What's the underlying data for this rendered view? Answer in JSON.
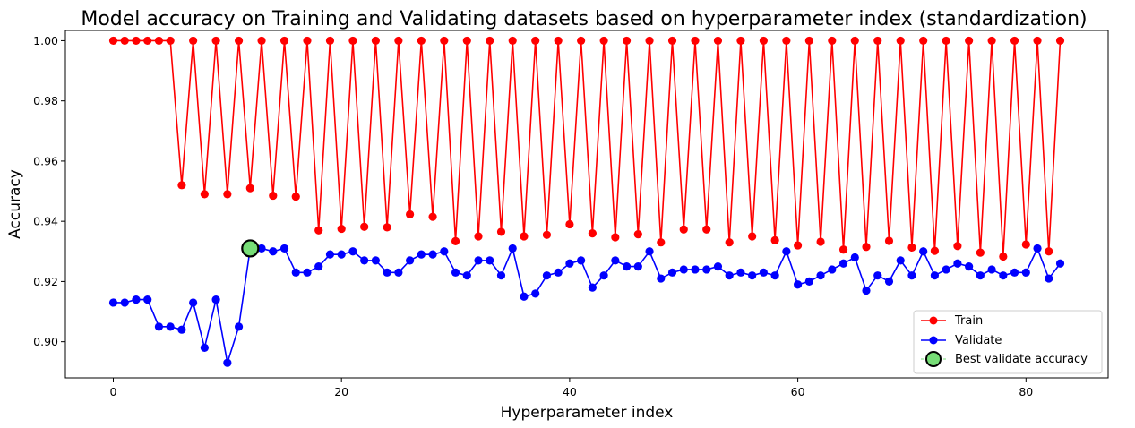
{
  "chart_data": {
    "type": "line",
    "title": "Model accuracy on Training and Validating datasets based on hyperparameter index (standardization)",
    "xlabel": "Hyperparameter index",
    "ylabel": "Accuracy",
    "xlim": [
      -4.2,
      87.2
    ],
    "ylim": [
      0.888,
      1.0034
    ],
    "xticks": [
      0,
      20,
      40,
      60,
      80
    ],
    "xtick_labels": [
      "0",
      "20",
      "40",
      "60",
      "80"
    ],
    "yticks": [
      0.9,
      0.92,
      0.94,
      0.96,
      0.98,
      1.0
    ],
    "ytick_labels": [
      "0.90",
      "0.92",
      "0.94",
      "0.96",
      "0.98",
      "1.00"
    ],
    "grid": false,
    "legend_position": "lower-right",
    "series": [
      {
        "name": "Train",
        "color": "#ff0000",
        "marker": "circle",
        "x": [
          0,
          1,
          2,
          3,
          4,
          5,
          6,
          7,
          8,
          9,
          10,
          11,
          12,
          13,
          14,
          15,
          16,
          17,
          18,
          19,
          20,
          21,
          22,
          23,
          24,
          25,
          26,
          27,
          28,
          29,
          30,
          31,
          32,
          33,
          34,
          35,
          36,
          37,
          38,
          39,
          40,
          41,
          42,
          43,
          44,
          45,
          46,
          47,
          48,
          49,
          50,
          51,
          52,
          53,
          54,
          55,
          56,
          57,
          58,
          59,
          60,
          61,
          62,
          63,
          64,
          65,
          66,
          67,
          68,
          69,
          70,
          71,
          72,
          73,
          74,
          75,
          76,
          77,
          78,
          79,
          80,
          81,
          82,
          83
        ],
        "values": [
          1.0,
          1.0,
          1.0,
          1.0,
          1.0,
          1.0,
          0.952,
          1.0,
          0.949,
          1.0,
          0.949,
          1.0,
          0.951,
          1.0,
          0.9485,
          1.0,
          0.9482,
          1.0,
          0.937,
          1.0,
          0.9375,
          1.0,
          0.9382,
          1.0,
          0.938,
          1.0,
          0.9423,
          1.0,
          0.9415,
          1.0,
          0.9334,
          1.0,
          0.935,
          1.0,
          0.9365,
          1.0,
          0.935,
          1.0,
          0.9355,
          1.0,
          0.939,
          1.0,
          0.936,
          1.0,
          0.9347,
          1.0,
          0.9357,
          1.0,
          0.933,
          1.0,
          0.9373,
          1.0,
          0.9373,
          1.0,
          0.933,
          1.0,
          0.935,
          1.0,
          0.9337,
          1.0,
          0.932,
          1.0,
          0.9332,
          1.0,
          0.9306,
          1.0,
          0.9315,
          1.0,
          0.9335,
          1.0,
          0.9313,
          1.0,
          0.9302,
          1.0,
          0.9318,
          1.0,
          0.9296,
          1.0,
          0.9283,
          1.0,
          0.9323,
          1.0,
          0.93,
          1.0
        ]
      },
      {
        "name": "Validate",
        "color": "#0000ff",
        "marker": "circle",
        "x": [
          0,
          1,
          2,
          3,
          4,
          5,
          6,
          7,
          8,
          9,
          10,
          11,
          12,
          13,
          14,
          15,
          16,
          17,
          18,
          19,
          20,
          21,
          22,
          23,
          24,
          25,
          26,
          27,
          28,
          29,
          30,
          31,
          32,
          33,
          34,
          35,
          36,
          37,
          38,
          39,
          40,
          41,
          42,
          43,
          44,
          45,
          46,
          47,
          48,
          49,
          50,
          51,
          52,
          53,
          54,
          55,
          56,
          57,
          58,
          59,
          60,
          61,
          62,
          63,
          64,
          65,
          66,
          67,
          68,
          69,
          70,
          71,
          72,
          73,
          74,
          75,
          76,
          77,
          78,
          79,
          80,
          81,
          82,
          83
        ],
        "values": [
          0.913,
          0.913,
          0.914,
          0.914,
          0.905,
          0.905,
          0.904,
          0.913,
          0.898,
          0.914,
          0.893,
          0.905,
          0.931,
          0.931,
          0.93,
          0.931,
          0.923,
          0.923,
          0.925,
          0.929,
          0.929,
          0.93,
          0.927,
          0.927,
          0.923,
          0.923,
          0.927,
          0.929,
          0.929,
          0.93,
          0.923,
          0.922,
          0.927,
          0.927,
          0.922,
          0.931,
          0.915,
          0.916,
          0.922,
          0.923,
          0.926,
          0.927,
          0.918,
          0.922,
          0.927,
          0.925,
          0.925,
          0.93,
          0.921,
          0.923,
          0.924,
          0.924,
          0.924,
          0.925,
          0.922,
          0.923,
          0.922,
          0.923,
          0.922,
          0.93,
          0.919,
          0.92,
          0.922,
          0.924,
          0.926,
          0.928,
          0.917,
          0.922,
          0.92,
          0.927,
          0.922,
          0.93,
          0.922,
          0.924,
          0.926,
          0.925,
          0.922,
          0.924,
          0.922,
          0.923,
          0.923,
          0.931,
          0.921,
          0.926
        ]
      },
      {
        "name": "Best validate accuracy",
        "color": "#77dd77",
        "edge_color": "#000000",
        "marker": "large-circle",
        "x": [
          12
        ],
        "values": [
          0.931
        ]
      }
    ]
  }
}
